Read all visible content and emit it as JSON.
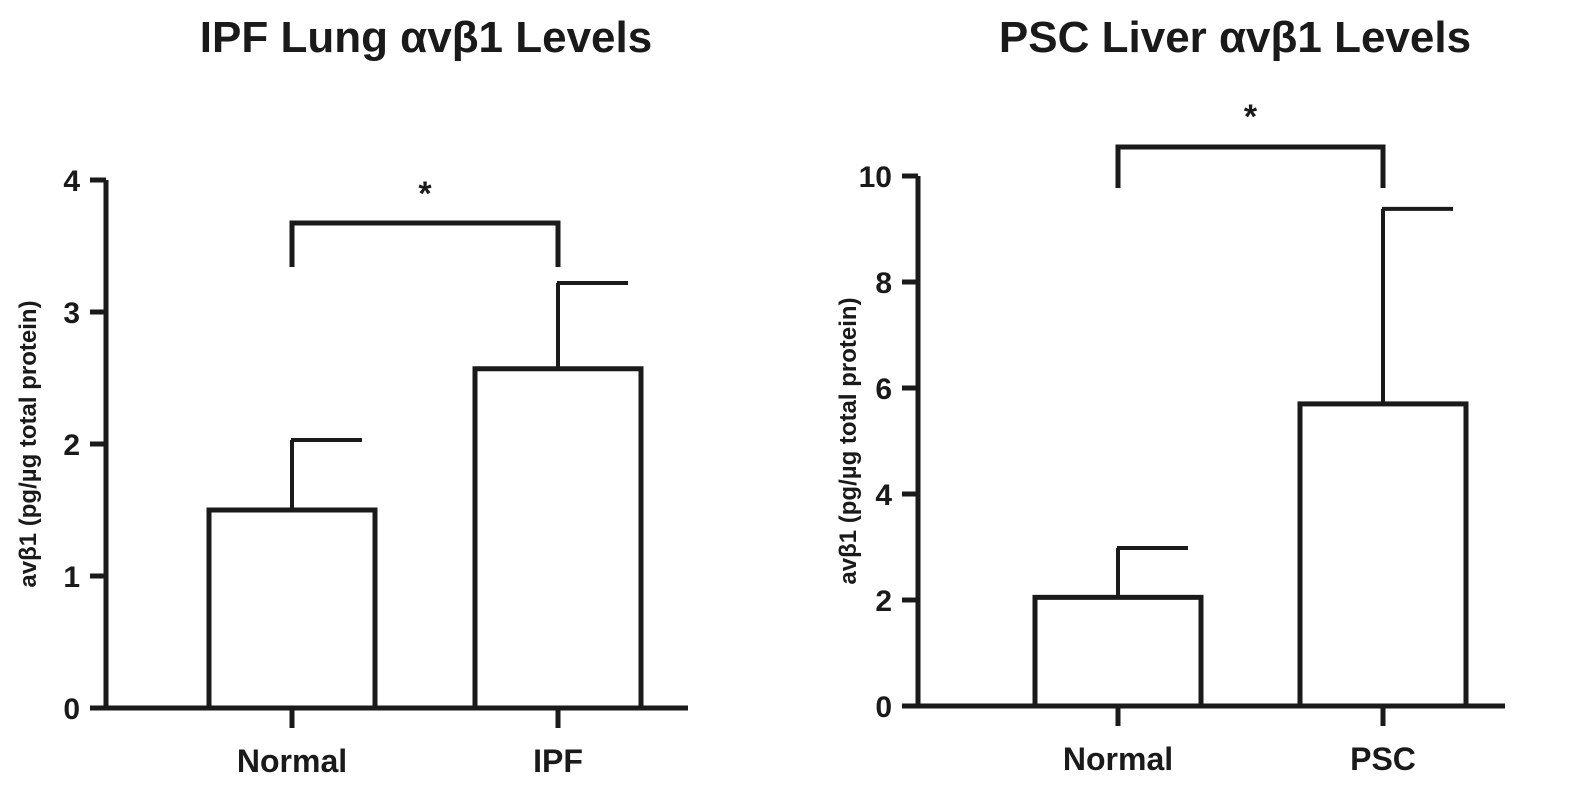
{
  "chart_data": [
    {
      "type": "bar",
      "title": "IPF Lung αvβ1 Levels",
      "ylabel": "avβ1 (pg/µg total protein)",
      "xlabel": "",
      "categories": [
        "Normal",
        "IPF"
      ],
      "values": [
        1.5,
        2.57
      ],
      "error_bars": [
        0.53,
        0.65
      ],
      "ylim": [
        0,
        4
      ],
      "yticks": [
        0,
        1,
        2,
        3,
        4
      ],
      "significance": {
        "groups": [
          "Normal",
          "IPF"
        ],
        "label": "*"
      },
      "grid": false,
      "bar_color": "#ffffff",
      "edge_color": "#1a1a1a"
    },
    {
      "type": "bar",
      "title": "PSC Liver αvβ1 Levels",
      "ylabel": "avβ1 (pg/µg total protein)",
      "xlabel": "",
      "categories": [
        "Normal",
        "PSC"
      ],
      "values": [
        2.05,
        5.7
      ],
      "error_bars": [
        0.93,
        3.68
      ],
      "ylim": [
        0,
        10
      ],
      "yticks": [
        0,
        2,
        4,
        6,
        8,
        10
      ],
      "significance": {
        "groups": [
          "Normal",
          "PSC"
        ],
        "label": "*"
      },
      "grid": false,
      "bar_color": "#ffffff",
      "edge_color": "#1a1a1a"
    }
  ]
}
